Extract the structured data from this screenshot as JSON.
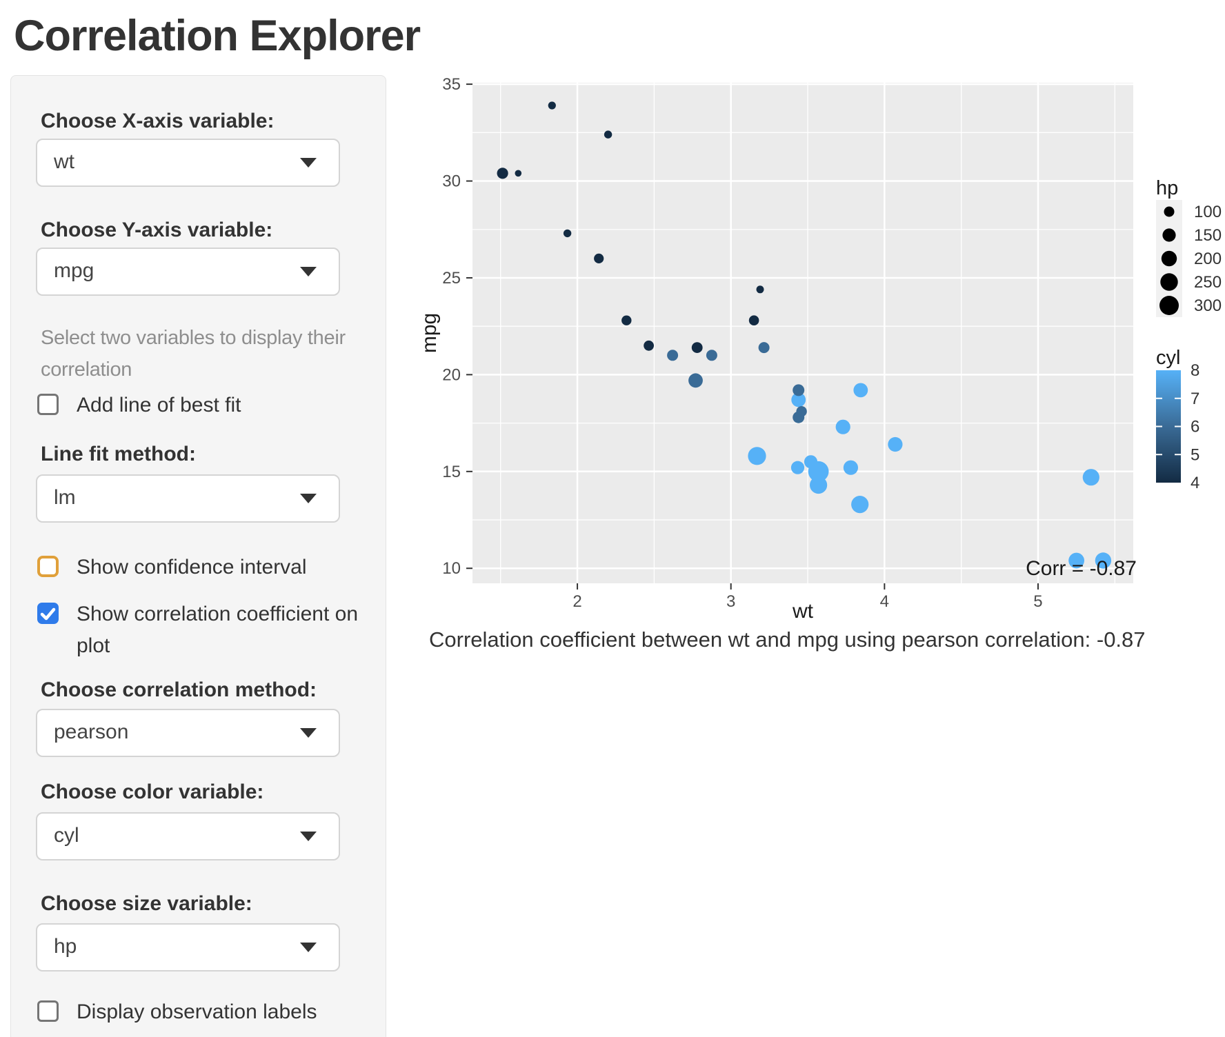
{
  "page": {
    "title": "Correlation Explorer"
  },
  "sidebar": {
    "x_axis": {
      "label": "Choose X-axis variable:",
      "value": "wt"
    },
    "y_axis": {
      "label": "Choose Y-axis variable:",
      "value": "mpg"
    },
    "help_text": "Select two variables to display their correlation",
    "best_fit": {
      "label": "Add line of best fit",
      "checked": false
    },
    "line_method": {
      "label": "Line fit method:",
      "value": "lm"
    },
    "conf_int": {
      "label": "Show confidence interval",
      "checked": false
    },
    "show_corr": {
      "label": "Show correlation coefficient on plot",
      "checked": true
    },
    "corr_method": {
      "label": "Choose correlation method:",
      "value": "pearson"
    },
    "color_var": {
      "label": "Choose color variable:",
      "value": "cyl"
    },
    "size_var": {
      "label": "Choose size variable:",
      "value": "hp"
    },
    "obs_labels": {
      "label": "Display observation labels",
      "checked": false
    }
  },
  "caption": "Correlation coefficient between wt and mpg using pearson correlation: -0.87",
  "chart_data": {
    "type": "scatter",
    "title": "",
    "xlabel": "wt",
    "ylabel": "mpg",
    "x_ticks": [
      2,
      3,
      4,
      5
    ],
    "y_ticks": [
      10,
      15,
      20,
      25,
      30,
      35
    ],
    "x_minor": [
      1.5,
      2.5,
      3.5,
      4.5,
      5.5
    ],
    "y_minor": [
      12.5,
      17.5,
      22.5,
      27.5,
      32.5
    ],
    "x_domain": [
      1.317,
      5.62
    ],
    "y_domain": [
      9.225,
      35.075
    ],
    "annotation": "Corr = -0.87",
    "grid": true,
    "colors": {
      "panel": "#EBEBEB",
      "grid": "#FFFFFF",
      "low": "#132B43",
      "mid": "#3A6B96",
      "high": "#56B1F7",
      "tick": "#333333",
      "tick_label": "#4D4D4D",
      "legend_key": "#F1F1F1"
    },
    "size_legend": {
      "title": "hp",
      "values": [
        100,
        150,
        200,
        250,
        300
      ]
    },
    "color_legend": {
      "title": "cyl",
      "ticks": [
        8,
        7,
        6,
        5,
        4
      ],
      "range": [
        4,
        8
      ]
    },
    "point_fields": [
      "wt",
      "mpg",
      "cyl",
      "hp"
    ],
    "points": [
      [
        2.62,
        21.0,
        6,
        110
      ],
      [
        2.875,
        21.0,
        6,
        110
      ],
      [
        2.32,
        22.8,
        4,
        93
      ],
      [
        3.215,
        21.4,
        6,
        110
      ],
      [
        3.44,
        18.7,
        8,
        175
      ],
      [
        3.46,
        18.1,
        6,
        105
      ],
      [
        3.57,
        14.3,
        8,
        245
      ],
      [
        3.19,
        24.4,
        4,
        62
      ],
      [
        3.15,
        22.8,
        4,
        95
      ],
      [
        3.44,
        19.2,
        6,
        123
      ],
      [
        3.44,
        17.8,
        6,
        123
      ],
      [
        4.07,
        16.4,
        8,
        180
      ],
      [
        3.73,
        17.3,
        8,
        180
      ],
      [
        3.78,
        15.2,
        8,
        180
      ],
      [
        5.25,
        10.4,
        8,
        205
      ],
      [
        5.424,
        10.4,
        8,
        215
      ],
      [
        5.345,
        14.7,
        8,
        230
      ],
      [
        2.2,
        32.4,
        4,
        66
      ],
      [
        1.615,
        30.4,
        4,
        52
      ],
      [
        1.835,
        33.9,
        4,
        65
      ],
      [
        2.465,
        21.5,
        4,
        97
      ],
      [
        3.52,
        15.5,
        8,
        150
      ],
      [
        3.435,
        15.2,
        8,
        150
      ],
      [
        3.84,
        13.3,
        8,
        245
      ],
      [
        3.845,
        19.2,
        8,
        175
      ],
      [
        1.935,
        27.3,
        4,
        66
      ],
      [
        2.14,
        26.0,
        4,
        91
      ],
      [
        1.513,
        30.4,
        4,
        113
      ],
      [
        3.17,
        15.8,
        8,
        264
      ],
      [
        2.77,
        19.7,
        6,
        175
      ],
      [
        3.57,
        15.0,
        8,
        335
      ],
      [
        2.78,
        21.4,
        4,
        109
      ]
    ]
  }
}
